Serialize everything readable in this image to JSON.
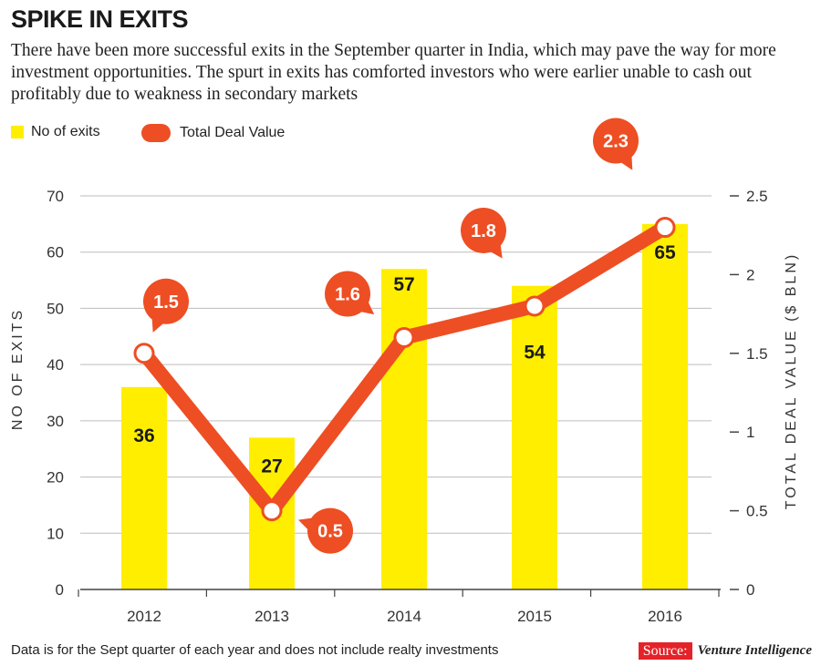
{
  "header": {
    "title": "SPIKE IN EXITS",
    "subtitle": "There have been more successful exits in the September quarter in India, which may pave the way for more investment opportunities. The spurt in exits has comforted investors who were earlier unable to cash out profitably due to weakness in secondary markets"
  },
  "legend": {
    "bar_label": "No of exits",
    "line_label": "Total Deal Value"
  },
  "colors": {
    "bar": "#ffee00",
    "line": "#ee4e23",
    "axis": "#444444"
  },
  "chart_data": {
    "type": "bar+line",
    "categories": [
      "2012",
      "2013",
      "2014",
      "2015",
      "2016"
    ],
    "series": [
      {
        "name": "No of exits",
        "type": "bar",
        "axis": "left",
        "values": [
          36,
          27,
          57,
          54,
          65
        ]
      },
      {
        "name": "Total Deal Value",
        "type": "line",
        "axis": "right",
        "values": [
          1.5,
          0.5,
          1.6,
          1.8,
          2.3
        ]
      }
    ],
    "ylabel_left": "NO OF EXITS",
    "ylabel_right": "TOTAL DEAL VALUE ($ BLN)",
    "ylim_left": [
      0,
      70
    ],
    "yticks_left": [
      "0",
      "10",
      "20",
      "30",
      "40",
      "50",
      "60",
      "70"
    ],
    "ylim_right": [
      0,
      2.5
    ],
    "yticks_right": [
      "0",
      "0.5",
      "1",
      "1.5",
      "2",
      "2.5"
    ],
    "bar_labels": [
      "36",
      "27",
      "57",
      "54",
      "65"
    ],
    "line_labels": [
      "1.5",
      "0.5",
      "1.6",
      "1.8",
      "2.3"
    ],
    "grid": true
  },
  "footer": {
    "note": "Data is for the Sept quarter of each year and does not include realty investments",
    "source_label": "Source:",
    "source_name": "Venture Intelligence"
  }
}
